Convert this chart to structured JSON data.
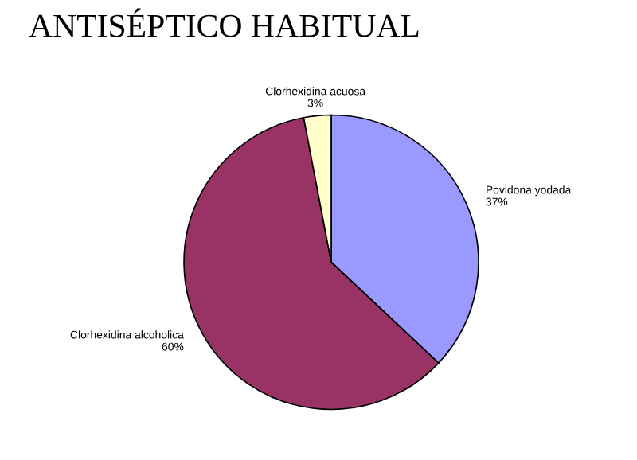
{
  "chart_data": {
    "type": "pie",
    "title": "ANTISÉPTICO HABITUAL",
    "categories": [
      "Povidona yodada",
      "Clorhexidina alcoholica",
      "Clorhexidina acuosa"
    ],
    "values": [
      37,
      60,
      3
    ],
    "colors": [
      "#9999ff",
      "#993366",
      "#ffffcc"
    ],
    "value_labels": [
      "37%",
      "60%",
      "3%"
    ]
  }
}
